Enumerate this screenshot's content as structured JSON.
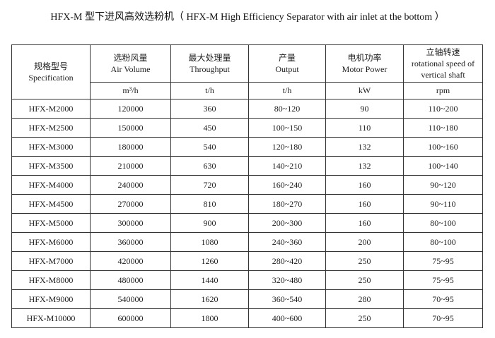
{
  "page": {
    "title": "HFX-M 型下进风高效选粉机（ HFX-M High Efficiency Separator with air inlet at the bottom ）"
  },
  "table": {
    "columns": [
      {
        "zh": "规格型号",
        "en": "Specification",
        "unit": ""
      },
      {
        "zh": "选粉风量",
        "en": "Air Volume",
        "unit": "m³/h"
      },
      {
        "zh": "最大处理量",
        "en": "Throughput",
        "unit": "t/h"
      },
      {
        "zh": "产量",
        "en": "Output",
        "unit": "t/h"
      },
      {
        "zh": "电机功率",
        "en": "Motor Power",
        "unit": "kW"
      },
      {
        "zh": "立轴转速",
        "en": "rotational speed of vertical shaft",
        "unit": "rpm"
      }
    ],
    "rows": [
      [
        "HFX-M2000",
        "120000",
        "360",
        "80~120",
        "90",
        "110~200"
      ],
      [
        "HFX-M2500",
        "150000",
        "450",
        "100~150",
        "110",
        "110~180"
      ],
      [
        "HFX-M3000",
        "180000",
        "540",
        "120~180",
        "132",
        "100~160"
      ],
      [
        "HFX-M3500",
        "210000",
        "630",
        "140~210",
        "132",
        "100~140"
      ],
      [
        "HFX-M4000",
        "240000",
        "720",
        "160~240",
        "160",
        "90~120"
      ],
      [
        "HFX-M4500",
        "270000",
        "810",
        "180~270",
        "160",
        "90~110"
      ],
      [
        "HFX-M5000",
        "300000",
        "900",
        "200~300",
        "160",
        "80~100"
      ],
      [
        "HFX-M6000",
        "360000",
        "1080",
        "240~360",
        "200",
        "80~100"
      ],
      [
        "HFX-M7000",
        "420000",
        "1260",
        "280~420",
        "250",
        "75~95"
      ],
      [
        "HFX-M8000",
        "480000",
        "1440",
        "320~480",
        "250",
        "75~95"
      ],
      [
        "HFX-M9000",
        "540000",
        "1620",
        "360~540",
        "280",
        "70~95"
      ],
      [
        "HFX-M10000",
        "600000",
        "1800",
        "400~600",
        "250",
        "70~95"
      ]
    ]
  }
}
